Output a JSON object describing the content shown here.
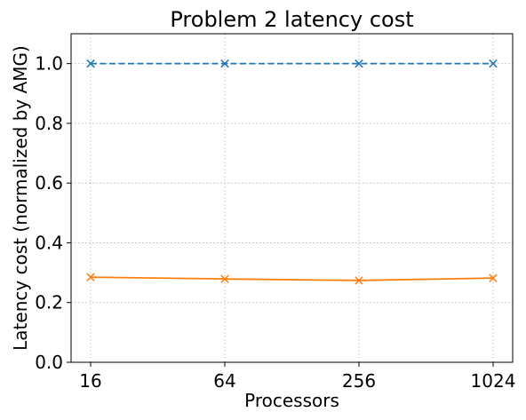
{
  "chart_data": {
    "type": "line",
    "title": "Problem 2 latency cost",
    "xlabel": "Processors",
    "ylabel": "Latency cost (normalized by AMG)",
    "categories": [
      "16",
      "64",
      "256",
      "1024"
    ],
    "ylim": [
      0,
      1.1
    ],
    "yticks": [
      "0.0",
      "0.2",
      "0.4",
      "0.6",
      "0.8",
      "1.0"
    ],
    "grid": true,
    "series": [
      {
        "values": [
          1.0,
          1.0,
          1.0,
          1.0
        ],
        "color": "#1f77b4",
        "linestyle": "dashed",
        "marker": "x"
      },
      {
        "values": [
          0.285,
          0.279,
          0.274,
          0.282
        ],
        "color": "#ff7f0e",
        "linestyle": "solid",
        "marker": "x"
      }
    ]
  }
}
